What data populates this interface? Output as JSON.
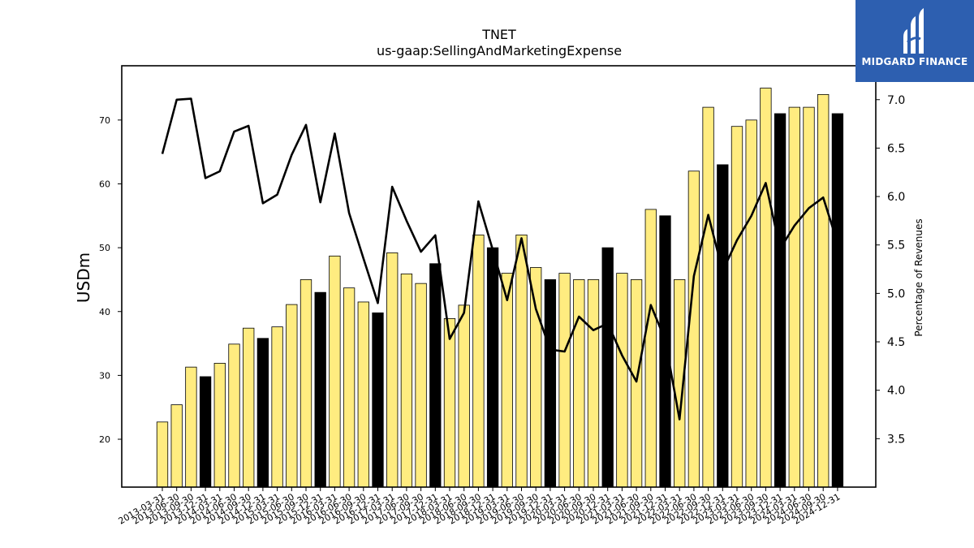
{
  "chart_data": {
    "type": "bar",
    "title": "TNET",
    "subtitle": "us-gaap:SellingAndMarketingExpense",
    "ylabel": "USDm",
    "y2label": "Percentage of Revenues",
    "ylim": [
      12.5,
      78.5
    ],
    "y2lim": [
      3.0,
      7.35
    ],
    "yticks": [
      20,
      30,
      40,
      50,
      60,
      70
    ],
    "y2ticks": [
      "3.5",
      "4.0",
      "4.5",
      "5.0",
      "5.5",
      "6.0",
      "6.5",
      "7.0"
    ],
    "categories": [
      "2013-03-31",
      "2013-06-30",
      "2013-09-30",
      "2013-12-31",
      "2014-03-31",
      "2014-06-30",
      "2014-09-30",
      "2014-12-31",
      "2015-03-31",
      "2015-06-30",
      "2015-09-30",
      "2015-12-31",
      "2016-03-31",
      "2016-06-30",
      "2016-09-30",
      "2016-12-31",
      "2017-03-31",
      "2017-06-30",
      "2017-09-30",
      "2017-12-31",
      "2018-03-31",
      "2018-06-30",
      "2018-09-30",
      "2018-12-31",
      "2019-03-31",
      "2019-06-30",
      "2019-09-30",
      "2019-12-31",
      "2020-03-31",
      "2020-06-30",
      "2020-09-30",
      "2020-12-31",
      "2021-03-31",
      "2021-06-30",
      "2021-09-30",
      "2021-12-31",
      "2022-03-31",
      "2022-06-30",
      "2022-09-30",
      "2022-12-31",
      "2023-03-31",
      "2023-06-30",
      "2023-09-30",
      "2023-12-31",
      "2024-03-31",
      "2024-06-30",
      "2024-09-30",
      "2024-12-31"
    ],
    "series": [
      {
        "values": [
          22.7,
          25.4,
          31.3,
          29.8,
          31.9,
          34.9,
          37.4,
          35.8,
          37.6,
          41.1,
          45.0,
          43.0,
          48.7,
          43.7,
          41.5,
          39.8,
          49.2,
          45.9,
          44.4,
          47.5,
          38.9,
          41.0,
          52.0,
          50.0,
          46.0,
          52.0,
          46.9,
          45.0,
          46.0,
          45.0,
          45.0,
          50.0,
          46.0,
          45.0,
          56.0,
          55.0,
          45.0,
          62.0,
          72.0,
          63.0,
          69.0,
          70.0,
          75.0,
          71.0,
          72.0,
          72.0,
          74.0,
          71.0
        ]
      },
      {
        "type": "line",
        "values": [
          6.44,
          7.0,
          7.01,
          6.19,
          6.26,
          6.67,
          6.73,
          5.93,
          6.02,
          6.43,
          6.74,
          5.94,
          6.65,
          5.83,
          5.36,
          4.9,
          6.1,
          5.75,
          5.43,
          5.6,
          4.53,
          4.8,
          5.95,
          5.45,
          4.93,
          5.57,
          4.84,
          4.42,
          4.4,
          4.76,
          4.62,
          4.69,
          4.36,
          4.09,
          4.88,
          4.52,
          3.7,
          5.18,
          5.81,
          5.23,
          5.55,
          5.8,
          6.14,
          5.46,
          5.7,
          5.88,
          5.99,
          5.52
        ]
      }
    ],
    "colors": {
      "bar": "#ffec80",
      "bar_highlight": "#000000",
      "line": "#000000",
      "logo_bg": "#2d5fb0"
    }
  },
  "logo": {
    "text": "MIDGARD FINANCE"
  }
}
